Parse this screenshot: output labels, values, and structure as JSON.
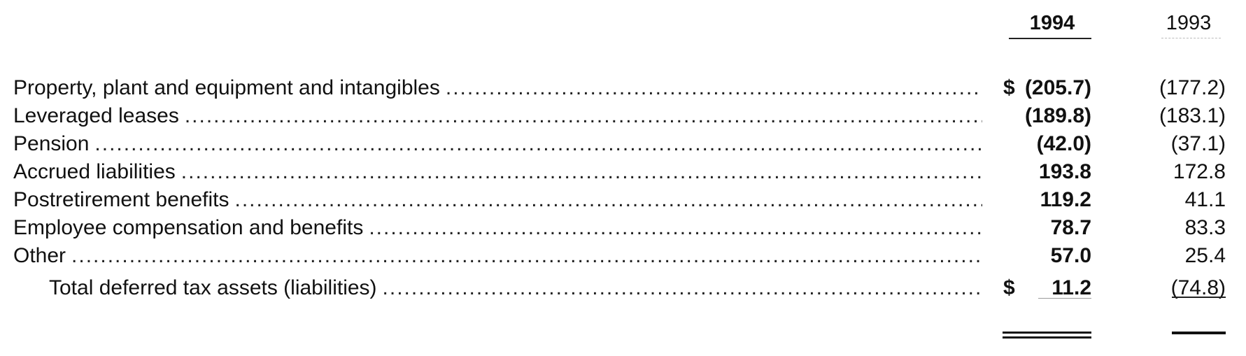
{
  "header": {
    "year_current": "1994",
    "year_prior": "1993"
  },
  "currency_symbol": "$",
  "leader_dots": "..............................................................................................................................................................................................................................................................",
  "rows": [
    {
      "label": "Property, plant and equipment and intangibles",
      "dollar": "$",
      "v1994": "(205.7)",
      "v1993": "(177.2)"
    },
    {
      "label": "Leveraged leases",
      "dollar": "",
      "v1994": "(189.8)",
      "v1993": "(183.1)"
    },
    {
      "label": "Pension",
      "dollar": "",
      "v1994": "(42.0)",
      "v1993": "(37.1)"
    },
    {
      "label": "Accrued liabilities",
      "dollar": "",
      "v1994": "193.8",
      "v1993": "172.8"
    },
    {
      "label": "Postretirement benefits",
      "dollar": "",
      "v1994": "119.2",
      "v1993": "41.1"
    },
    {
      "label": "Employee compensation and benefits",
      "dollar": "",
      "v1994": "78.7",
      "v1993": "83.3"
    },
    {
      "label": "Other",
      "dollar": "",
      "v1994": "57.0",
      "v1993": "25.4"
    }
  ],
  "total": {
    "label": "Total deferred tax assets (liabilities)",
    "dollar": "$",
    "v1994": "11.2",
    "v1993": "(74.8)"
  }
}
